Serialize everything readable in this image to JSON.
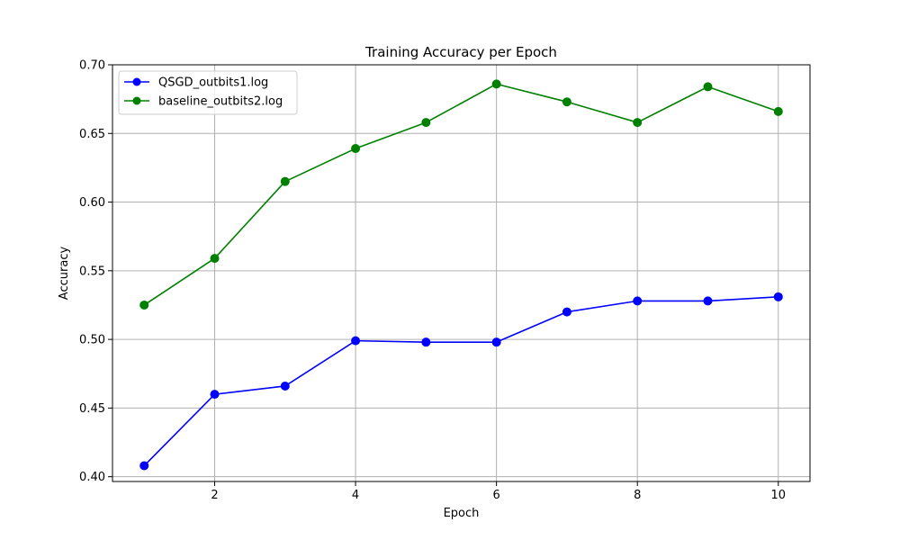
{
  "chart_data": {
    "type": "line",
    "title": "Training Accuracy per Epoch",
    "xlabel": "Epoch",
    "ylabel": "Accuracy",
    "xlim": [
      0.55,
      10.45
    ],
    "ylim": [
      0.3965,
      0.7
    ],
    "xticks": [
      2,
      4,
      6,
      8,
      10
    ],
    "xtick_labels": [
      "2",
      "4",
      "6",
      "8",
      "10"
    ],
    "yticks": [
      0.4,
      0.45,
      0.5,
      0.55,
      0.6,
      0.65,
      0.7
    ],
    "ytick_labels": [
      "0.40",
      "0.45",
      "0.50",
      "0.55",
      "0.60",
      "0.65",
      "0.70"
    ],
    "grid": true,
    "legend_position": "top-left",
    "x": [
      1,
      2,
      3,
      4,
      5,
      6,
      7,
      8,
      9,
      10
    ],
    "series": [
      {
        "name": "QSGD_outbits1.log",
        "color": "#0000ff",
        "marker": "circle",
        "values": [
          0.408,
          0.46,
          0.466,
          0.499,
          0.498,
          0.498,
          0.52,
          0.528,
          0.528,
          0.531
        ]
      },
      {
        "name": "baseline_outbits2.log",
        "color": "#008000",
        "marker": "circle",
        "values": [
          0.525,
          0.559,
          0.615,
          0.639,
          0.658,
          0.686,
          0.673,
          0.658,
          0.684,
          0.666
        ]
      }
    ]
  }
}
